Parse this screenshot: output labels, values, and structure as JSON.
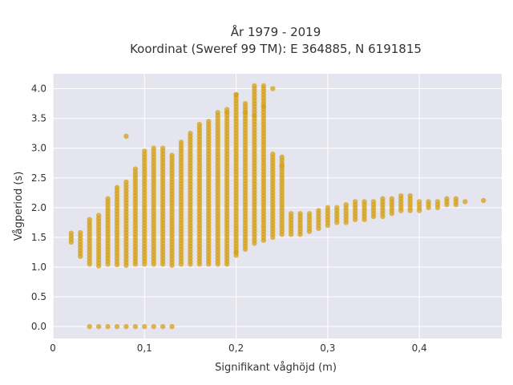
{
  "chart_data": {
    "type": "scatter",
    "title_lines": [
      "År 1979 - 2019",
      "Koordinat (Sweref 99 TM): E 364885, N 6191815"
    ],
    "xlabel": "Signifikant våghöjd (m)",
    "ylabel": "Vågperiod (s)",
    "xlim": [
      0,
      0.49
    ],
    "ylim": [
      -0.2,
      4.25
    ],
    "x_ticks": [
      0,
      0.1,
      0.2,
      0.3,
      0.4
    ],
    "x_tick_labels": [
      "0",
      "0,1",
      "0,2",
      "0,3",
      "0,4"
    ],
    "y_ticks": [
      0,
      0.5,
      1.0,
      1.5,
      2.0,
      2.5,
      3.0,
      3.5,
      4.0
    ],
    "y_tick_labels": [
      "0.0",
      "0.5",
      "1.0",
      "1.5",
      "2.0",
      "2.5",
      "3.0",
      "3.5",
      "4.0"
    ],
    "grid": true,
    "colors": {
      "marker": "#d4a017",
      "plot_bg": "#e5e5ef",
      "grid": "#ffffff"
    },
    "series": [
      {
        "columns": [
          [
            0.02,
            1.42,
            1.55
          ],
          [
            0.03,
            1.18,
            1.6
          ],
          [
            0.04,
            1.05,
            1.8
          ],
          [
            0.05,
            1.02,
            1.88
          ],
          [
            0.06,
            1.05,
            2.15
          ],
          [
            0.07,
            1.04,
            2.35
          ],
          [
            0.08,
            1.03,
            2.45
          ],
          [
            0.09,
            1.05,
            2.65
          ],
          [
            0.1,
            1.05,
            2.95
          ],
          [
            0.11,
            1.05,
            3.02
          ],
          [
            0.12,
            1.05,
            3.02
          ],
          [
            0.13,
            1.03,
            2.9
          ],
          [
            0.14,
            1.05,
            3.12
          ],
          [
            0.15,
            1.05,
            3.25
          ],
          [
            0.16,
            1.05,
            3.4
          ],
          [
            0.17,
            1.05,
            3.45
          ],
          [
            0.18,
            1.05,
            3.6
          ],
          [
            0.19,
            1.05,
            3.65
          ],
          [
            0.2,
            1.2,
            3.92
          ],
          [
            0.21,
            1.3,
            3.75
          ],
          [
            0.22,
            1.4,
            4.05
          ],
          [
            0.23,
            1.45,
            4.05
          ],
          [
            0.24,
            1.5,
            2.9
          ],
          [
            0.25,
            1.55,
            2.85
          ],
          [
            0.26,
            1.55,
            1.9
          ],
          [
            0.27,
            1.55,
            1.9
          ],
          [
            0.28,
            1.6,
            1.92
          ],
          [
            0.29,
            1.65,
            1.95
          ],
          [
            0.3,
            1.7,
            1.98
          ],
          [
            0.31,
            1.75,
            2.0
          ],
          [
            0.32,
            1.75,
            2.05
          ],
          [
            0.33,
            1.8,
            2.08
          ],
          [
            0.34,
            1.8,
            2.1
          ],
          [
            0.35,
            1.85,
            2.12
          ],
          [
            0.36,
            1.85,
            2.15
          ],
          [
            0.37,
            1.9,
            2.15
          ],
          [
            0.38,
            1.95,
            2.18
          ],
          [
            0.39,
            1.95,
            2.18
          ],
          [
            0.4,
            1.95,
            2.12
          ],
          [
            0.41,
            2.0,
            2.1
          ],
          [
            0.42,
            2.0,
            2.1
          ],
          [
            0.43,
            2.05,
            2.15
          ],
          [
            0.44,
            2.05,
            2.15
          ],
          [
            0.45,
            2.1,
            2.12
          ],
          [
            0.47,
            2.12,
            2.12
          ]
        ],
        "points": [
          [
            0.04,
            0.0
          ],
          [
            0.05,
            0.0
          ],
          [
            0.06,
            0.0
          ],
          [
            0.07,
            0.0
          ],
          [
            0.08,
            0.0
          ],
          [
            0.09,
            0.0
          ],
          [
            0.1,
            0.0
          ],
          [
            0.11,
            0.0
          ],
          [
            0.12,
            0.0
          ],
          [
            0.13,
            0.0
          ],
          [
            0.08,
            3.2
          ],
          [
            0.2,
            3.9
          ],
          [
            0.22,
            3.55
          ],
          [
            0.24,
            4.0
          ],
          [
            0.25,
            2.7
          ],
          [
            0.23,
            3.7
          ],
          [
            0.21,
            3.6
          ],
          [
            0.2,
            1.25
          ],
          [
            0.19,
            3.6
          ]
        ]
      }
    ]
  }
}
